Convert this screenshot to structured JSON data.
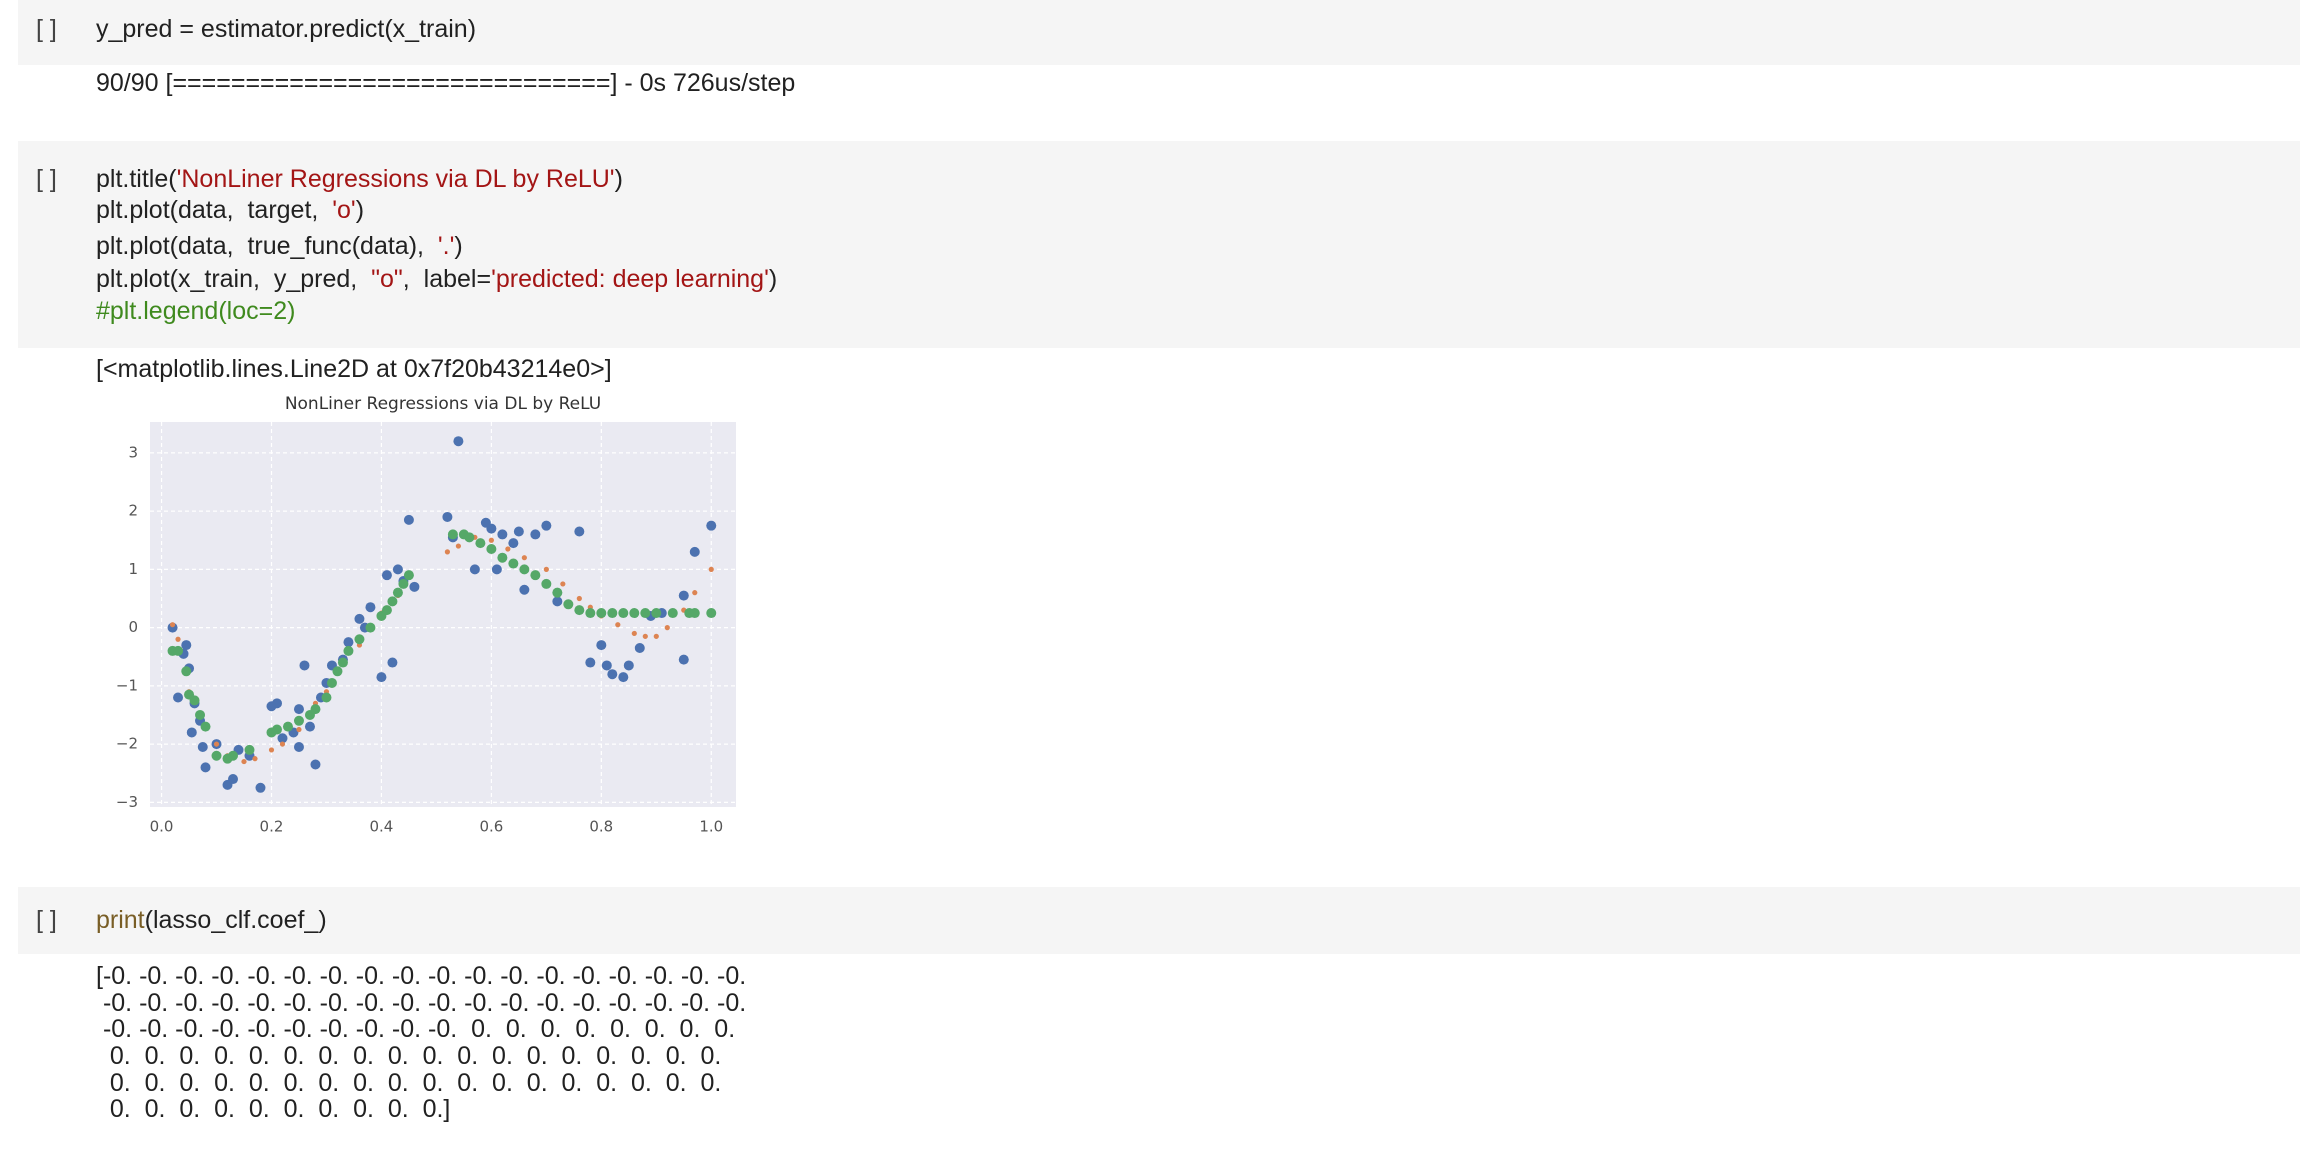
{
  "cells": [
    {
      "prompt": "[ ]",
      "code": [
        [
          {
            "text": "y_pred = estimator.predict(x_train)",
            "color": "#212121"
          }
        ]
      ],
      "output": [
        "90/90 [==============================] - 0s 726us/step"
      ]
    },
    {
      "prompt": "[ ]",
      "code": [
        [
          {
            "text": "plt.title(",
            "color": "#212121"
          },
          {
            "text": "'NonLiner Regressions via DL by ReLU'",
            "color": "#a31515"
          },
          {
            "text": ")",
            "color": "#212121"
          }
        ],
        [
          {
            "text": "plt.plot(data,  target,  ",
            "color": "#212121"
          },
          {
            "text": "'o'",
            "color": "#a31515"
          },
          {
            "text": ")",
            "color": "#212121"
          }
        ],
        [
          {
            "text": "plt.plot(data,  true_func(data),  ",
            "color": "#212121"
          },
          {
            "text": "'.'",
            "color": "#a31515"
          },
          {
            "text": ")",
            "color": "#212121"
          }
        ],
        [
          {
            "text": "plt.plot(x_train,  y_pred,  ",
            "color": "#212121"
          },
          {
            "text": "\"o\"",
            "color": "#a31515"
          },
          {
            "text": ",  label=",
            "color": "#212121"
          },
          {
            "text": "'predicted: deep learning'",
            "color": "#a31515"
          },
          {
            "text": ")",
            "color": "#212121"
          }
        ],
        [
          {
            "text": "#plt.legend(loc=2)",
            "color": "#3f8a1e"
          }
        ]
      ],
      "output": [
        "[<matplotlib.lines.Line2D at 0x7f20b43214e0>]"
      ]
    },
    {
      "prompt": "[ ]",
      "code": [
        [
          {
            "text": "print",
            "color": "#795e26"
          },
          {
            "text": "(lasso_clf.coef_)",
            "color": "#212121"
          }
        ]
      ],
      "output": [
        "[-0. -0. -0. -0. -0. -0. -0. -0. -0. -0. -0. -0. -0. -0. -0. -0. -0. -0.",
        " -0. -0. -0. -0. -0. -0. -0. -0. -0. -0. -0. -0. -0. -0. -0. -0. -0. -0.",
        " -0. -0. -0. -0. -0. -0. -0. -0. -0. -0.  0.  0.  0.  0.  0.  0.  0.  0.",
        "  0.  0.  0.  0.  0.  0.  0.  0.  0.  0.  0.  0.  0.  0.  0.  0.  0.  0.",
        "  0.  0.  0.  0.  0.  0.  0.  0.  0.  0.  0.  0.  0.  0.  0.  0.  0.  0.",
        "  0.  0.  0.  0.  0.  0.  0.  0.  0.  0.]"
      ]
    }
  ],
  "chart_data": {
    "type": "scatter",
    "title": "NonLiner Regressions via DL by ReLU",
    "xlim": [
      -0.021,
      1.045
    ],
    "ylim": [
      -3.08,
      3.53
    ],
    "xticks": [
      {
        "value": 0,
        "label": "0.0"
      },
      0.2,
      0.4,
      0.6,
      0.8,
      {
        "value": 1,
        "label": "1.0"
      }
    ],
    "yticks": [
      {
        "value": -3,
        "label": "−3"
      },
      {
        "value": -2,
        "label": "−2"
      },
      {
        "value": -1,
        "label": "−1"
      },
      0,
      1,
      2,
      3
    ],
    "grid": true,
    "series": [
      {
        "color": "#4c72b0",
        "marker": "o",
        "x": [
          0.02,
          0.03,
          0.04,
          0.045,
          0.05,
          0.055,
          0.06,
          0.07,
          0.08,
          0.075,
          0.1,
          0.12,
          0.13,
          0.14,
          0.16,
          0.18,
          0.2,
          0.21,
          0.22,
          0.24,
          0.25,
          0.25,
          0.26,
          0.27,
          0.28,
          0.29,
          0.3,
          0.31,
          0.33,
          0.34,
          0.36,
          0.37,
          0.38,
          0.4,
          0.41,
          0.42,
          0.43,
          0.44,
          0.45,
          0.46,
          0.52,
          0.53,
          0.54,
          0.57,
          0.59,
          0.6,
          0.61,
          0.62,
          0.64,
          0.65,
          0.66,
          0.68,
          0.7,
          0.72,
          0.76,
          0.78,
          0.8,
          0.81,
          0.82,
          0.84,
          0.85,
          0.87,
          0.89,
          0.91,
          0.95,
          0.95,
          0.97,
          1.0
        ],
        "values": [
          0.0,
          -1.2,
          -0.45,
          -0.3,
          -0.7,
          -1.8,
          -1.3,
          -1.6,
          -2.4,
          -2.05,
          -2.0,
          -2.7,
          -2.6,
          -2.1,
          -2.2,
          -2.75,
          -1.35,
          -1.3,
          -1.9,
          -1.8,
          -2.05,
          -1.4,
          -0.65,
          -1.7,
          -2.35,
          -1.2,
          -0.95,
          -0.65,
          -0.55,
          -0.25,
          0.15,
          0.0,
          0.35,
          -0.85,
          0.9,
          -0.6,
          1.0,
          0.8,
          1.85,
          0.7,
          1.9,
          1.55,
          3.2,
          1.0,
          1.8,
          1.7,
          1.0,
          1.6,
          1.45,
          1.65,
          0.65,
          1.6,
          1.75,
          0.45,
          1.65,
          -0.6,
          -0.3,
          -0.65,
          -0.8,
          -0.85,
          -0.65,
          -0.35,
          0.2,
          0.25,
          -0.55,
          0.55,
          1.3,
          1.75
        ]
      },
      {
        "color": "#dd8452",
        "marker": ".",
        "x": [
          0.02,
          0.03,
          0.05,
          0.07,
          0.1,
          0.12,
          0.15,
          0.17,
          0.2,
          0.22,
          0.25,
          0.28,
          0.3,
          0.33,
          0.36,
          0.4,
          0.43,
          0.45,
          0.52,
          0.54,
          0.57,
          0.6,
          0.63,
          0.66,
          0.7,
          0.73,
          0.76,
          0.78,
          0.8,
          0.83,
          0.86,
          0.88,
          0.9,
          0.92,
          0.95,
          0.97,
          1.0
        ],
        "values": [
          0.05,
          -0.2,
          -1.1,
          -1.5,
          -2.0,
          -2.2,
          -2.3,
          -2.25,
          -2.1,
          -2.0,
          -1.75,
          -1.3,
          -1.1,
          -0.6,
          -0.3,
          0.25,
          0.55,
          0.9,
          1.3,
          1.4,
          1.55,
          1.5,
          1.35,
          1.2,
          1.0,
          0.75,
          0.5,
          0.35,
          0.2,
          0.05,
          -0.1,
          -0.15,
          -0.15,
          0.0,
          0.3,
          0.6,
          1.0
        ]
      },
      {
        "color": "#55a868",
        "marker": "o",
        "x": [
          0.02,
          0.03,
          0.045,
          0.05,
          0.06,
          0.07,
          0.08,
          0.1,
          0.12,
          0.13,
          0.16,
          0.2,
          0.21,
          0.23,
          0.25,
          0.27,
          0.28,
          0.3,
          0.31,
          0.32,
          0.33,
          0.34,
          0.36,
          0.38,
          0.4,
          0.41,
          0.42,
          0.43,
          0.44,
          0.45,
          0.53,
          0.55,
          0.56,
          0.58,
          0.6,
          0.62,
          0.64,
          0.66,
          0.68,
          0.7,
          0.72,
          0.74,
          0.76,
          0.78,
          0.8,
          0.82,
          0.84,
          0.86,
          0.88,
          0.9,
          0.93,
          0.96,
          0.97,
          1.0
        ],
        "values": [
          -0.4,
          -0.4,
          -0.75,
          -1.15,
          -1.25,
          -1.5,
          -1.7,
          -2.2,
          -2.25,
          -2.2,
          -2.1,
          -1.8,
          -1.75,
          -1.7,
          -1.6,
          -1.5,
          -1.4,
          -1.2,
          -0.95,
          -0.75,
          -0.6,
          -0.4,
          -0.2,
          0.0,
          0.2,
          0.3,
          0.45,
          0.6,
          0.75,
          0.9,
          1.6,
          1.6,
          1.55,
          1.45,
          1.35,
          1.2,
          1.1,
          1.0,
          0.9,
          0.75,
          0.6,
          0.4,
          0.3,
          0.25,
          0.25,
          0.25,
          0.25,
          0.25,
          0.25,
          0.25,
          0.25,
          0.25,
          0.25,
          0.25
        ]
      }
    ]
  }
}
